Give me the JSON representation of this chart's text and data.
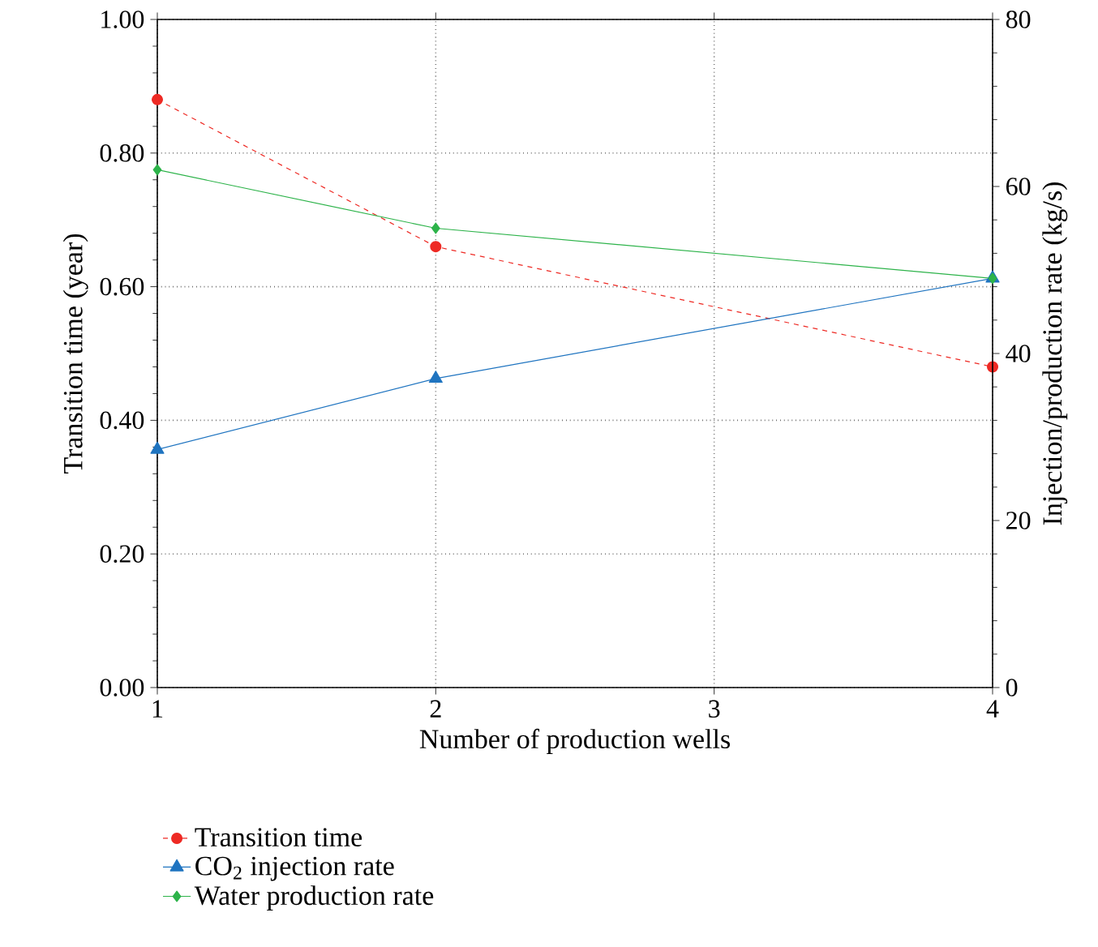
{
  "chart_data": {
    "type": "line",
    "xlabel": "Number of production wells",
    "ylabel": "Transition time (year)",
    "y2label": "Injection/production rate (kg/s)",
    "x": [
      1,
      2,
      4
    ],
    "xlim": [
      1,
      4
    ],
    "xticks": [
      1,
      2,
      3,
      4
    ],
    "ylim": [
      0,
      1
    ],
    "yticks": [
      {
        "value": 0,
        "label": "0.00"
      },
      {
        "value": 0.2,
        "label": "0.20"
      },
      {
        "value": 0.4,
        "label": "0.40"
      },
      {
        "value": 0.6,
        "label": "0.60"
      },
      {
        "value": 0.8,
        "label": "0.80"
      },
      {
        "value": 1,
        "label": "1.00"
      }
    ],
    "y2lim": [
      0,
      80
    ],
    "y2ticks": [
      0,
      20,
      40,
      60,
      80
    ],
    "grid": true,
    "legend": "bottom",
    "series": [
      {
        "name": "Transition time",
        "color": "#ee2a24",
        "marker": "circle",
        "line_style": "dashed",
        "values": [
          0.88,
          0.66,
          0.48
        ]
      },
      {
        "name": "CO$_{2}$ injection rate",
        "color": "#1f74c0",
        "marker": "triangle",
        "line_style": "solid",
        "axis": "y2",
        "values": [
          28.5,
          37,
          49
        ]
      },
      {
        "name": "Water production rate",
        "color": "#2db34a",
        "marker": "diamond",
        "line_style": "solid",
        "axis": "y2",
        "values": [
          62,
          55,
          49
        ]
      }
    ]
  }
}
